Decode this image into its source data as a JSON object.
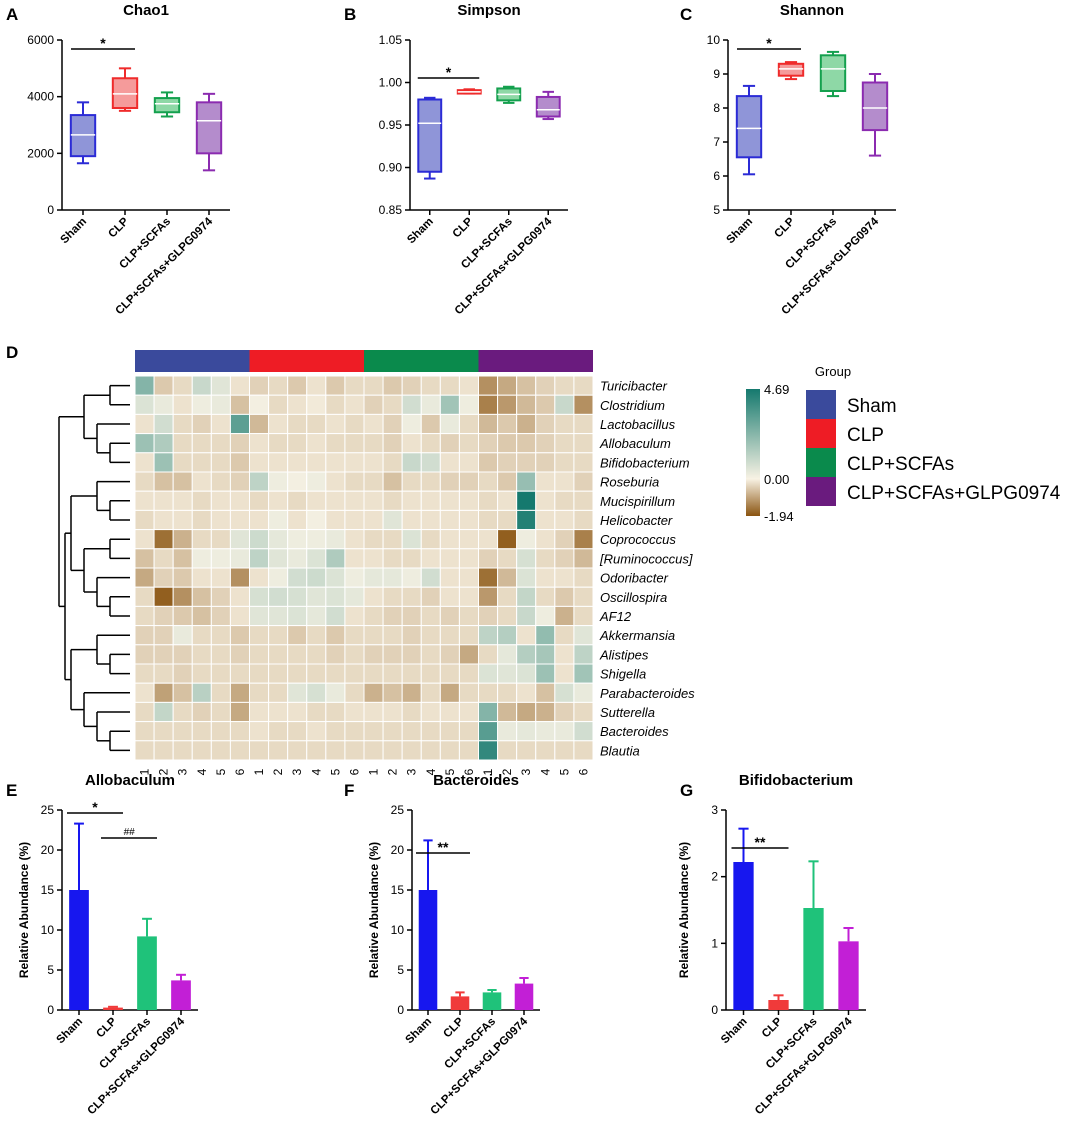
{
  "panel_labels": [
    "A",
    "B",
    "C",
    "D",
    "E",
    "F",
    "G"
  ],
  "colors": {
    "blue": "#2b2bd6",
    "red": "#ef2b2b",
    "green": "#14a04e",
    "purple": "#8b2bb0",
    "bar_blue": "#1717ef",
    "bar_red": "#f03a3a",
    "bar_green": "#1fc27a",
    "bar_purple": "#c21fd6",
    "grp_sham": "#3a4a9c",
    "grp_clp": "#ee1c25",
    "grp_scfa": "#0a8a4c",
    "grp_glpg": "#6a1b7e"
  },
  "chart_data": [
    {
      "id": "A",
      "type": "box",
      "title": "Chao1",
      "ylim": [
        0,
        6000
      ],
      "yticks": [
        "0",
        "2000",
        "4000",
        "6000"
      ],
      "categories": [
        "Sham",
        "CLP",
        "CLP+SCFAs",
        "CLP+SCFAs+GLPG0974"
      ],
      "boxes": [
        {
          "min": 1650,
          "q1": 1900,
          "median": 2650,
          "q3": 3350,
          "max": 3800
        },
        {
          "min": 3500,
          "q1": 3600,
          "median": 4100,
          "q3": 4650,
          "max": 5000
        },
        {
          "min": 3300,
          "q1": 3450,
          "median": 3750,
          "q3": 3950,
          "max": 4150
        },
        {
          "min": 1400,
          "q1": 2000,
          "median": 3150,
          "q3": 3800,
          "max": 4100
        }
      ],
      "significance": [
        {
          "from": 0,
          "to": 1,
          "label": "*"
        }
      ]
    },
    {
      "id": "B",
      "type": "box",
      "title": "Simpson",
      "ylim": [
        0.85,
        1.05
      ],
      "yticks": [
        "0.85",
        "0.90",
        "0.95",
        "1.00",
        "1.05"
      ],
      "categories": [
        "Sham",
        "CLP",
        "CLP+SCFAs",
        "CLP+SCFAs+GLPG0974"
      ],
      "boxes": [
        {
          "min": 0.887,
          "q1": 0.895,
          "median": 0.952,
          "q3": 0.98,
          "max": 0.982
        },
        {
          "min": 0.987,
          "q1": 0.987,
          "median": 0.989,
          "q3": 0.991,
          "max": 0.992
        },
        {
          "min": 0.976,
          "q1": 0.979,
          "median": 0.986,
          "q3": 0.993,
          "max": 0.995
        },
        {
          "min": 0.957,
          "q1": 0.96,
          "median": 0.968,
          "q3": 0.983,
          "max": 0.989
        }
      ],
      "significance": [
        {
          "from": 0,
          "to": 1,
          "label": "*"
        }
      ]
    },
    {
      "id": "C",
      "type": "box",
      "title": "Shannon",
      "ylim": [
        5,
        10
      ],
      "yticks": [
        "5",
        "6",
        "7",
        "8",
        "9",
        "10"
      ],
      "categories": [
        "Sham",
        "CLP",
        "CLP+SCFAs",
        "CLP+SCFAs+GLPG0974"
      ],
      "boxes": [
        {
          "min": 6.05,
          "q1": 6.55,
          "median": 7.4,
          "q3": 8.35,
          "max": 8.65
        },
        {
          "min": 8.85,
          "q1": 8.95,
          "median": 9.15,
          "q3": 9.3,
          "max": 9.35
        },
        {
          "min": 8.35,
          "q1": 8.5,
          "median": 9.15,
          "q3": 9.55,
          "max": 9.65
        },
        {
          "min": 6.6,
          "q1": 7.35,
          "median": 8.0,
          "q3": 8.75,
          "max": 9.0
        }
      ],
      "significance": [
        {
          "from": 0,
          "to": 1,
          "label": "*"
        }
      ]
    },
    {
      "id": "D",
      "type": "heatmap",
      "legend_title": "Group",
      "groups": [
        "Sham",
        "CLP",
        "CLP+SCFAs",
        "CLP+SCFAs+GLPG0974"
      ],
      "columns": [
        "1",
        "2",
        "3",
        "4",
        "5",
        "6",
        "1",
        "2",
        "3",
        "4",
        "5",
        "6",
        "1",
        "2",
        "3",
        "4",
        "5",
        "6",
        "1",
        "2",
        "3",
        "4",
        "5",
        "6"
      ],
      "colorbar_labels": [
        "4.69",
        "0.00",
        "-1.94"
      ],
      "range": [
        -1.94,
        4.69
      ],
      "rows": [
        "Turicibacter",
        "Clostridium",
        "Lactobacillus",
        "Allobaculum",
        "Bifidobacterium",
        "Roseburia",
        "Mucispirillum",
        "Helicobacter",
        "Coprococcus",
        "[Ruminococcus]",
        "Odoribacter",
        "Oscillospira",
        "AF12",
        "Akkermansia",
        "Alistipes",
        "Shigella",
        "Parabacteroides",
        "Sutterella",
        "Bacteroides",
        "Blautia"
      ],
      "values": [
        [
          2.4,
          -0.5,
          -0.3,
          1.0,
          0.5,
          -0.2,
          -0.4,
          -0.3,
          -0.5,
          -0.2,
          -0.5,
          -0.3,
          -0.3,
          -0.5,
          -0.4,
          -0.3,
          -0.3,
          -0.2,
          -1.2,
          -0.9,
          -0.6,
          -0.4,
          -0.3,
          -0.3
        ],
        [
          0.6,
          0.3,
          -0.2,
          0.2,
          0.3,
          -0.6,
          0.1,
          -0.3,
          -0.2,
          -0.1,
          -0.3,
          -0.2,
          -0.4,
          -0.3,
          0.8,
          0.3,
          1.8,
          0.2,
          -1.4,
          -1.1,
          -0.7,
          -0.5,
          1.0,
          -1.2
        ],
        [
          -0.2,
          0.8,
          -0.3,
          -0.4,
          -0.2,
          3.2,
          -0.7,
          -0.2,
          -0.3,
          -0.3,
          -0.2,
          -0.3,
          -0.2,
          -0.4,
          0.2,
          -0.5,
          0.3,
          -0.3,
          -0.7,
          -0.5,
          -0.8,
          -0.4,
          -0.3,
          -0.3
        ],
        [
          1.9,
          1.5,
          -0.3,
          -0.3,
          -0.3,
          -0.4,
          -0.2,
          -0.3,
          -0.3,
          -0.2,
          -0.3,
          -0.3,
          -0.3,
          -0.4,
          -0.2,
          -0.3,
          -0.4,
          -0.3,
          -0.4,
          -0.5,
          -0.5,
          -0.4,
          -0.3,
          -0.3
        ],
        [
          -0.2,
          1.9,
          -0.3,
          -0.3,
          -0.3,
          -0.5,
          -0.2,
          -0.2,
          -0.2,
          -0.2,
          -0.2,
          -0.2,
          -0.2,
          -0.3,
          1.0,
          0.8,
          -0.2,
          -0.2,
          -0.5,
          -0.4,
          -0.4,
          -0.4,
          -0.3,
          -0.3
        ],
        [
          -0.3,
          -0.6,
          -0.6,
          -0.2,
          -0.3,
          -0.4,
          1.2,
          0.2,
          0.1,
          0.2,
          -0.2,
          -0.3,
          -0.3,
          -0.6,
          -0.3,
          -0.3,
          -0.4,
          -0.4,
          -0.3,
          -0.5,
          2.0,
          -0.2,
          -0.2,
          -0.4
        ],
        [
          -0.2,
          -0.2,
          -0.2,
          -0.3,
          -0.2,
          -0.2,
          -0.3,
          -0.2,
          -0.3,
          -0.2,
          -0.2,
          -0.2,
          -0.2,
          -0.3,
          -0.2,
          -0.2,
          -0.2,
          -0.2,
          -0.3,
          -0.2,
          4.69,
          -0.2,
          -0.3,
          -0.3
        ],
        [
          -0.3,
          -0.2,
          -0.2,
          -0.3,
          -0.2,
          -0.2,
          -0.2,
          0.2,
          -0.2,
          0.1,
          -0.2,
          -0.2,
          -0.2,
          0.5,
          -0.2,
          -0.2,
          -0.2,
          -0.2,
          -0.3,
          -0.3,
          4.4,
          -0.2,
          -0.2,
          -0.3
        ],
        [
          -0.2,
          -1.6,
          -0.8,
          -0.3,
          -0.3,
          0.5,
          0.9,
          0.4,
          0.2,
          0.2,
          0.3,
          -0.2,
          -0.3,
          -0.3,
          0.6,
          -0.3,
          -0.2,
          -0.2,
          -0.2,
          -1.8,
          0.2,
          -0.2,
          -0.4,
          -1.4
        ],
        [
          -0.6,
          -0.3,
          -0.6,
          0.2,
          0.2,
          0.3,
          1.2,
          0.5,
          0.3,
          0.6,
          1.5,
          -0.2,
          -0.2,
          -0.3,
          -0.3,
          -0.2,
          -0.2,
          -0.2,
          -0.4,
          -0.3,
          0.7,
          -0.3,
          -0.4,
          -0.7
        ],
        [
          -0.9,
          -0.4,
          -0.5,
          -0.2,
          -0.2,
          -1.2,
          -0.2,
          0.2,
          0.8,
          0.9,
          0.6,
          0.2,
          0.4,
          0.4,
          0.2,
          0.8,
          -0.2,
          -0.2,
          -1.6,
          -0.7,
          0.6,
          -0.2,
          -0.2,
          -0.3
        ],
        [
          -0.3,
          -1.8,
          -1.2,
          -0.6,
          -0.4,
          -0.2,
          0.7,
          0.8,
          0.7,
          0.5,
          0.6,
          0.4,
          -0.2,
          -0.3,
          -0.3,
          -0.4,
          -0.2,
          -0.2,
          -1.1,
          -0.3,
          1.1,
          -0.3,
          -0.5,
          -0.3
        ],
        [
          -0.3,
          -0.4,
          -0.5,
          -0.6,
          -0.4,
          -0.2,
          0.5,
          0.5,
          0.6,
          0.4,
          0.8,
          -0.2,
          -0.3,
          -0.4,
          -0.4,
          -0.3,
          -0.4,
          -0.3,
          -0.4,
          -0.3,
          1.0,
          0.2,
          -0.8,
          -0.3
        ],
        [
          -0.4,
          -0.4,
          0.3,
          -0.3,
          -0.3,
          -0.5,
          -0.3,
          -0.3,
          -0.5,
          -0.3,
          -0.5,
          -0.3,
          -0.3,
          -0.3,
          -0.4,
          -0.3,
          -0.3,
          -0.3,
          1.2,
          1.4,
          -0.2,
          2.1,
          -0.3,
          0.5
        ],
        [
          -0.4,
          -0.4,
          -0.4,
          -0.3,
          -0.3,
          -0.4,
          -0.3,
          -0.3,
          -0.3,
          -0.3,
          -0.4,
          -0.3,
          -0.4,
          -0.4,
          -0.4,
          -0.3,
          -0.4,
          -0.9,
          -0.3,
          0.4,
          1.4,
          1.7,
          -0.2,
          1.2
        ],
        [
          -0.3,
          -0.3,
          -0.4,
          -0.3,
          -0.3,
          -0.3,
          -0.3,
          -0.3,
          -0.3,
          -0.3,
          -0.3,
          -0.3,
          -0.3,
          -0.3,
          -0.3,
          -0.3,
          -0.3,
          -0.3,
          0.6,
          0.5,
          0.6,
          1.9,
          -0.2,
          1.8
        ],
        [
          -0.2,
          -1.0,
          -0.6,
          1.3,
          -0.3,
          -0.9,
          -0.3,
          -0.3,
          0.5,
          0.7,
          0.3,
          -0.3,
          -0.8,
          -0.6,
          -0.8,
          -0.3,
          -0.9,
          -0.3,
          -0.3,
          -0.3,
          -0.2,
          -0.6,
          0.7,
          0.3
        ],
        [
          -0.3,
          1.1,
          -0.3,
          -0.4,
          -0.3,
          -0.9,
          -0.2,
          -0.2,
          -0.2,
          -0.3,
          -0.3,
          -0.2,
          -0.2,
          -0.2,
          -0.3,
          -0.2,
          -0.2,
          -0.2,
          2.4,
          -0.7,
          -0.9,
          -0.8,
          -0.4,
          -0.3
        ],
        [
          -0.3,
          -0.3,
          -0.3,
          -0.3,
          -0.3,
          -0.3,
          -0.2,
          -0.3,
          -0.3,
          -0.2,
          -0.3,
          -0.3,
          -0.3,
          -0.3,
          -0.3,
          -0.3,
          -0.3,
          -0.3,
          3.3,
          0.3,
          0.4,
          0.3,
          0.3,
          0.8
        ],
        [
          -0.3,
          -0.3,
          -0.3,
          -0.3,
          -0.3,
          -0.3,
          -0.3,
          -0.3,
          -0.3,
          -0.3,
          -0.3,
          -0.3,
          -0.3,
          -0.3,
          -0.3,
          -0.3,
          -0.3,
          -0.3,
          4.1,
          -0.3,
          -0.3,
          -0.3,
          -0.3,
          -0.3
        ]
      ]
    },
    {
      "id": "E",
      "type": "bar",
      "title": "Allobaculum",
      "ylabel": "Relative Abundance (%)",
      "ylim": [
        0,
        25
      ],
      "yticks": [
        "0",
        "5",
        "10",
        "15",
        "20",
        "25"
      ],
      "categories": [
        "Sham",
        "CLP",
        "CLP+SCFAs",
        "CLP+SCFAs+GLPG0974"
      ],
      "values": [
        15.0,
        0.3,
        9.2,
        3.7
      ],
      "errors": [
        8.3,
        0.1,
        2.2,
        0.7
      ],
      "significance": [
        {
          "from": 0,
          "to": 1,
          "label": "*"
        },
        {
          "from": 1,
          "to": 2,
          "label": "##"
        }
      ]
    },
    {
      "id": "F",
      "type": "bar",
      "title": "Bacteroides",
      "ylabel": "Relative Abundance (%)",
      "ylim": [
        0,
        25
      ],
      "yticks": [
        "0",
        "5",
        "10",
        "15",
        "20",
        "25"
      ],
      "categories": [
        "Sham",
        "CLP",
        "CLP+SCFAs",
        "CLP+SCFAs+GLPG0974"
      ],
      "values": [
        15.0,
        1.7,
        2.2,
        3.3
      ],
      "errors": [
        6.2,
        0.5,
        0.3,
        0.7
      ],
      "significance": [
        {
          "from": 0,
          "to": 1,
          "label": "**"
        }
      ]
    },
    {
      "id": "G",
      "type": "bar",
      "title": "Bifidobacterium",
      "ylabel": "Relative Abundance (%)",
      "ylim": [
        0,
        3
      ],
      "yticks": [
        "0",
        "1",
        "2",
        "3"
      ],
      "categories": [
        "Sham",
        "CLP",
        "CLP+SCFAs",
        "CLP+SCFAs+GLPG0974"
      ],
      "values": [
        2.22,
        0.15,
        1.53,
        1.03
      ],
      "errors": [
        0.5,
        0.07,
        0.7,
        0.2
      ],
      "significance": [
        {
          "from": 0,
          "to": 1,
          "label": "**"
        }
      ]
    }
  ]
}
